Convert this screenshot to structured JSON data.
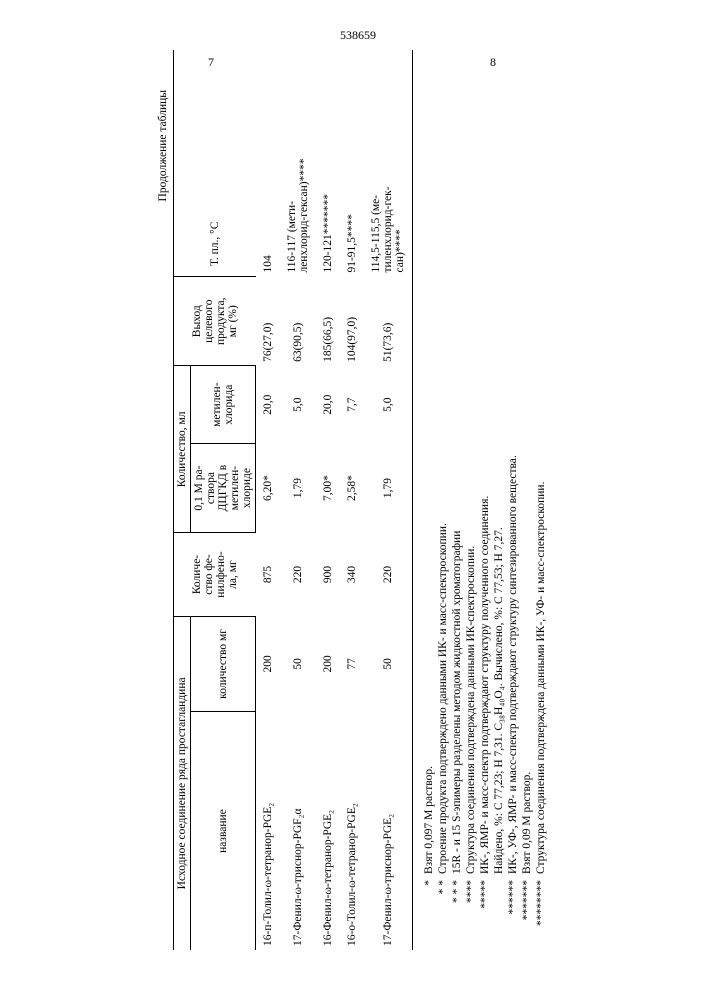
{
  "doc_number": "538659",
  "page_left": "7",
  "page_right": "8",
  "caption": "Продолжение таблицы",
  "headers": {
    "h_group1": "Исходное соединение ряда простагландина",
    "h_name": "название",
    "h_qty": "количество мг",
    "h_phenol": "Количе-\nство фе-\nнилфено-\nла, мг",
    "h_volume": "Количество, мл",
    "h_sol": "0,1 М ра-\nствора\nДЦГКД в\nметилен-\nхлориде",
    "h_mch": "метилен-\nхлорида",
    "h_yield": "Выход\nцелевого\nпродукта,\nмг (%)",
    "h_mp": "Т. пл.,   °С"
  },
  "rows": [
    {
      "name": "16-п-Толил-ω-тетранор-PGE₂",
      "qty": "200",
      "phenol": "875",
      "sol": "6,20*",
      "mch": "20,0",
      "yield": "76(27,0)",
      "mp": "104"
    },
    {
      "name": "17-Фенил-ω-триснор-PGF₂α",
      "qty": "50",
      "phenol": "220",
      "sol": "1,79",
      "mch": "5,0",
      "yield": "63(90,5)",
      "mp": "116-117 (мети-\nленхлорид-гексан)****"
    },
    {
      "name": "16-Фенил-ω-тетранор-PGE₂",
      "qty": "200",
      "phenol": "900",
      "sol": "7,00*",
      "mch": "20,0",
      "yield": "185(66,5)",
      "mp": "120-121*******"
    },
    {
      "name": "16-о-Толил-ω-тетранор-PGE₂",
      "qty": "77",
      "phenol": "340",
      "sol": "2,58*",
      "mch": "7,7",
      "yield": "104(97,0)",
      "mp": "91-91,5****"
    },
    {
      "name": "17-Фенил-ω-триснор-PGE₂",
      "qty": "50",
      "phenol": "220",
      "sol": "1,79",
      "mch": "5,0",
      "yield": "51(73,6)",
      "mp": "114,5-115,5 (ме-\nтиленхлорид-гек-\nсан)****"
    }
  ],
  "footnotes": [
    {
      "mark": "*",
      "text": "Взят 0,097 М раствор."
    },
    {
      "mark": "* *",
      "text": "Строение продукта подтверждено данными ИК- и масс-спектроскопии."
    },
    {
      "mark": "* * *",
      "text": "15R - и 15 S-эпимеры разделены методом жидкостной хроматографии"
    },
    {
      "mark": "****",
      "text": "Структура соединения подтверждена данными ИК-спектроскопии."
    },
    {
      "mark": "*****",
      "text": "ИК-, ЯМР- и масс-спектр подтверждают структуру полученного соединения."
    },
    {
      "mark": "",
      "text": "Найдено, %: С 77,23; Н 7,31. C₃₈H₄₀O₄. Вычислено, %: С 77,53; Н 7,27."
    },
    {
      "mark": "******",
      "text": "ИК-, УФ-, ЯМР- и масс-спектр подтверждают структуру синтезированного вещества."
    },
    {
      "mark": "*******",
      "text": "Взят 0,09 М раствор."
    },
    {
      "mark": "********",
      "text": "Структура соединения подтверждена данными ИК-, УФ- и масс-спектроскопии."
    }
  ]
}
